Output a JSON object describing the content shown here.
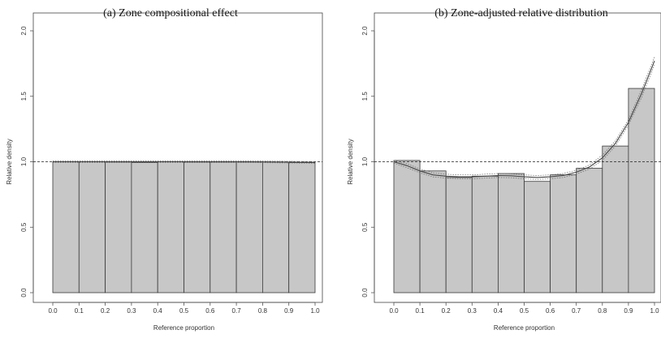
{
  "chart_data": [
    {
      "type": "bar",
      "title": "(a) Zone compositional effect",
      "xlabel": "Reference proportion",
      "ylabel": "Relative density",
      "xlim": [
        0,
        1
      ],
      "ylim": [
        0,
        2
      ],
      "x_ticks": [
        "0.0",
        "0.1",
        "0.2",
        "0.3",
        "0.4",
        "0.5",
        "0.6",
        "0.7",
        "0.8",
        "0.9",
        "1.0"
      ],
      "y_ticks": [
        "0.0",
        "0.5",
        "1.0",
        "1.5",
        "2.0"
      ],
      "bins": [
        "0.0-0.1",
        "0.1-0.2",
        "0.2-0.3",
        "0.3-0.4",
        "0.4-0.5",
        "0.5-0.6",
        "0.6-0.7",
        "0.7-0.8",
        "0.8-0.9",
        "0.9-1.0"
      ],
      "values": [
        1.0,
        1.0,
        0.998,
        0.994,
        1.0,
        0.998,
        0.998,
        0.998,
        0.998,
        0.994
      ],
      "reference_line": 1.0,
      "smooth_fit": {
        "x": [
          0.0,
          0.25,
          0.5,
          0.75,
          1.0
        ],
        "y": [
          1.0,
          1.0,
          1.0,
          1.0,
          0.995
        ],
        "lower": [
          0.994,
          0.994,
          0.994,
          0.994,
          0.989
        ],
        "upper": [
          1.006,
          1.006,
          1.006,
          1.006,
          1.001
        ]
      },
      "grid": false
    },
    {
      "type": "bar",
      "title": "(b) Zone-adjusted relative distribution",
      "xlabel": "Reference proportion",
      "ylabel": "Relative density",
      "xlim": [
        0,
        1
      ],
      "ylim": [
        0,
        2
      ],
      "x_ticks": [
        "0.0",
        "0.1",
        "0.2",
        "0.3",
        "0.4",
        "0.5",
        "0.6",
        "0.7",
        "0.8",
        "0.9",
        "1.0"
      ],
      "y_ticks": [
        "0.0",
        "0.5",
        "1.0",
        "1.5",
        "2.0"
      ],
      "bins": [
        "0.0-0.1",
        "0.1-0.2",
        "0.2-0.3",
        "0.3-0.4",
        "0.4-0.5",
        "0.5-0.6",
        "0.6-0.7",
        "0.7-0.8",
        "0.8-0.9",
        "0.9-1.0"
      ],
      "values": [
        1.01,
        0.93,
        0.88,
        0.89,
        0.91,
        0.85,
        0.9,
        0.95,
        1.12,
        1.56
      ],
      "reference_line": 1.0,
      "smooth_fit": {
        "x": [
          0.0,
          0.05,
          0.1,
          0.15,
          0.2,
          0.25,
          0.3,
          0.35,
          0.4,
          0.45,
          0.5,
          0.55,
          0.6,
          0.65,
          0.7,
          0.75,
          0.8,
          0.85,
          0.9,
          0.95,
          1.0
        ],
        "y": [
          1.0,
          0.97,
          0.93,
          0.9,
          0.89,
          0.885,
          0.885,
          0.89,
          0.895,
          0.893,
          0.885,
          0.88,
          0.885,
          0.895,
          0.92,
          0.96,
          1.03,
          1.14,
          1.3,
          1.52,
          1.77
        ],
        "lower": [
          0.99,
          0.955,
          0.915,
          0.885,
          0.875,
          0.87,
          0.87,
          0.875,
          0.88,
          0.878,
          0.87,
          0.865,
          0.87,
          0.88,
          0.905,
          0.945,
          1.01,
          1.12,
          1.28,
          1.49,
          1.74
        ],
        "upper": [
          1.01,
          0.985,
          0.945,
          0.915,
          0.905,
          0.9,
          0.9,
          0.905,
          0.91,
          0.908,
          0.9,
          0.895,
          0.9,
          0.91,
          0.935,
          0.975,
          1.05,
          1.16,
          1.32,
          1.55,
          1.8
        ]
      },
      "grid": false
    }
  ]
}
